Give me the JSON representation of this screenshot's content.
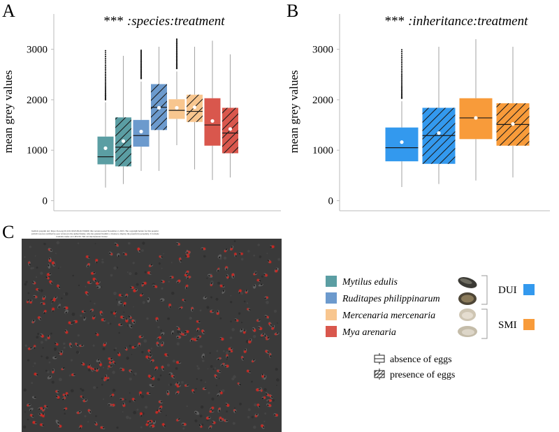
{
  "panels": {
    "a_letter": "A",
    "b_letter": "B",
    "c_letter": "C"
  },
  "image_notice": {
    "line1": "bioRxiv preprint doi: https://doi.org/10.1101/2023.09.26.559490; this version posted November 2, 2023. The copyright holder for this preprint",
    "line2": "(which was not certified by peer review) is the author/funder, who has granted bioRxiv a license to display the preprint in perpetuity. It is made",
    "line3": "available under aCC-BY-NC-ND 4.0 International license."
  },
  "chart_data": [
    {
      "type": "box",
      "title_stars": "***",
      "title_text": ":species:treatment",
      "ylabel": "mean grey values",
      "yticks": [
        0,
        1000,
        2000,
        3000
      ],
      "ylim": [
        -200,
        3700
      ],
      "boxes": [
        {
          "name": "Mytilus edulis - absence of eggs",
          "color": "#5b9ea3",
          "hatch": false,
          "whisker_low": 260,
          "q1": 720,
          "median": 870,
          "q3": 1270,
          "whisker_high": 1950,
          "mean": 1040,
          "outliers_from": 2000,
          "outliers_to": 2970
        },
        {
          "name": "Mytilus edulis - presence of eggs",
          "color": "#5b9ea3",
          "hatch": true,
          "whisker_low": 330,
          "q1": 680,
          "median": 1060,
          "q3": 1650,
          "whisker_high": 2870,
          "mean": 1180
        },
        {
          "name": "Ruditapes philippinarum - absence of eggs",
          "color": "#6c9acd",
          "hatch": false,
          "whisker_low": 590,
          "q1": 1070,
          "median": 1290,
          "q3": 1600,
          "whisker_high": 2360,
          "mean": 1370,
          "outliers_from": 2420,
          "outliers_to": 2980
        },
        {
          "name": "Ruditapes philippinarum - presence of eggs",
          "color": "#6c9acd",
          "hatch": true,
          "whisker_low": 590,
          "q1": 1400,
          "median": 1850,
          "q3": 2310,
          "whisker_high": 3050,
          "mean": 1840
        },
        {
          "name": "Mercenaria mercenaria - absence of eggs",
          "color": "#f8c68f",
          "hatch": false,
          "whisker_low": 1100,
          "q1": 1620,
          "median": 1790,
          "q3": 2010,
          "whisker_high": 2560,
          "mean": 1840,
          "outliers_from": 2620,
          "outliers_to": 3200
        },
        {
          "name": "Mercenaria mercenaria - presence of eggs",
          "color": "#f8c68f",
          "hatch": true,
          "whisker_low": 620,
          "q1": 1560,
          "median": 1770,
          "q3": 2100,
          "whisker_high": 3050,
          "mean": 1850
        },
        {
          "name": "Mya arenaria - absence of eggs",
          "color": "#d9574d",
          "hatch": false,
          "whisker_low": 410,
          "q1": 1090,
          "median": 1500,
          "q3": 2030,
          "whisker_high": 3170,
          "mean": 1580
        },
        {
          "name": "Mya arenaria - presence of eggs",
          "color": "#d9574d",
          "hatch": true,
          "whisker_low": 460,
          "q1": 940,
          "median": 1340,
          "q3": 1840,
          "whisker_high": 2900,
          "mean": 1420
        }
      ]
    },
    {
      "type": "box",
      "title_stars": "***",
      "title_text": ":inheritance:treatment",
      "ylabel": "mean grey values",
      "yticks": [
        0,
        1000,
        2000,
        3000
      ],
      "ylim": [
        -200,
        3700
      ],
      "boxes": [
        {
          "name": "DUI - absence of eggs",
          "color": "#3399ee",
          "hatch": false,
          "whisker_low": 270,
          "q1": 780,
          "median": 1050,
          "q3": 1450,
          "whisker_high": 1970,
          "mean": 1160,
          "outliers_from": 2030,
          "outliers_to": 2990
        },
        {
          "name": "DUI - presence of eggs",
          "color": "#3399ee",
          "hatch": true,
          "whisker_low": 330,
          "q1": 730,
          "median": 1290,
          "q3": 1840,
          "whisker_high": 3050,
          "mean": 1340
        },
        {
          "name": "SMI - absence of eggs",
          "color": "#f89b3a",
          "hatch": false,
          "whisker_low": 400,
          "q1": 1220,
          "median": 1640,
          "q3": 2030,
          "whisker_high": 3200,
          "mean": 1640
        },
        {
          "name": "SMI - presence of eggs",
          "color": "#f89b3a",
          "hatch": true,
          "whisker_low": 460,
          "q1": 1090,
          "median": 1510,
          "q3": 1930,
          "whisker_high": 3050,
          "mean": 1520
        }
      ]
    }
  ],
  "legend": {
    "species": [
      {
        "label": "Mytilus edulis",
        "color": "#5b9ea3"
      },
      {
        "label": "Ruditapes philippinarum",
        "color": "#6c9acd"
      },
      {
        "label": "Mercenaria mercenaria",
        "color": "#f8c68f"
      },
      {
        "label": "Mya arenaria",
        "color": "#d9574d"
      }
    ],
    "dui_label": "DUI",
    "dui_color": "#3399ee",
    "smi_label": "SMI",
    "smi_color": "#f89b3a",
    "absence_label": "absence of eggs",
    "presence_label": "presence of eggs"
  }
}
